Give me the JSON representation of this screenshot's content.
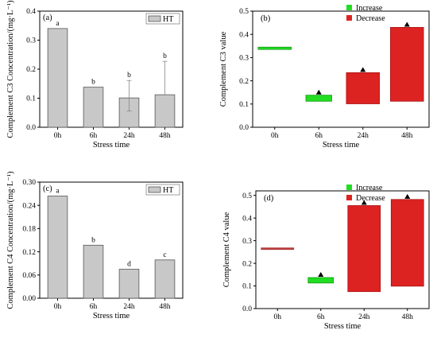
{
  "chart_data": [
    {
      "panel": "(a)",
      "type": "bar",
      "categories": [
        "0h",
        "6h",
        "24h",
        "48h"
      ],
      "values": [
        0.34,
        0.138,
        0.101,
        0.112
      ],
      "errors_upper": [
        0.0,
        0.0,
        0.06,
        0.115
      ],
      "errors_lower": [
        0.0,
        0.0,
        0.045,
        0.0
      ],
      "letters": [
        "a",
        "b",
        "b",
        "b"
      ],
      "legend": "HT",
      "legend_position": "top-right",
      "xlabel": "Stress time",
      "ylabel": "Complement C3 Concentration/(mg·L⁻¹)",
      "ylim": [
        0,
        0.4
      ],
      "yticks": [
        "0.0",
        "0.1",
        "0.2",
        "0.3",
        "0.4"
      ],
      "bar_color": "#c8c8c8"
    },
    {
      "panel": "(b)",
      "type": "bar",
      "subtype": "waterfall",
      "categories": [
        "0h",
        "6h",
        "24h",
        "48h"
      ],
      "ranges": [
        [
          0.335,
          0.345
        ],
        [
          0.112,
          0.138
        ],
        [
          0.101,
          0.235
        ],
        [
          0.112,
          0.43
        ]
      ],
      "directions": [
        "start",
        "increase",
        "decrease",
        "decrease"
      ],
      "legend": [
        "Increase",
        "Decrease"
      ],
      "legend_position": "top-right",
      "xlabel": "Stress time",
      "ylabel": "Complement C3 value",
      "ylim": [
        0,
        0.5
      ],
      "yticks": [
        "0.0",
        "0.1",
        "0.2",
        "0.3",
        "0.4",
        "0.5"
      ],
      "colors": {
        "increase": "#22dd22",
        "decrease": "#dd2222"
      }
    },
    {
      "panel": "(c)",
      "type": "bar",
      "categories": [
        "0h",
        "6h",
        "24h",
        "48h"
      ],
      "values": [
        0.264,
        0.137,
        0.075,
        0.099
      ],
      "letters": [
        "a",
        "b",
        "d",
        "c"
      ],
      "legend": "HT",
      "legend_position": "top-right",
      "xlabel": "Stress time",
      "ylabel": "Complement C4 Concentration/(mg·L⁻¹)",
      "ylim": [
        0,
        0.3
      ],
      "yticks": [
        "0.00",
        "0.06",
        "0.12",
        "0.18",
        "0.24",
        "0.30"
      ],
      "bar_color": "#c8c8c8"
    },
    {
      "panel": "(d)",
      "type": "bar",
      "subtype": "waterfall",
      "categories": [
        "0h",
        "6h",
        "24h",
        "48h"
      ],
      "ranges": [
        [
          0.265,
          0.268
        ],
        [
          0.113,
          0.137
        ],
        [
          0.075,
          0.455
        ],
        [
          0.099,
          0.482
        ]
      ],
      "directions": [
        "start",
        "increase",
        "decrease",
        "decrease"
      ],
      "legend": [
        "Increase",
        "Decrease"
      ],
      "legend_position": "top-right",
      "xlabel": "Stress time",
      "ylabel": "Complement C4 value",
      "ylim": [
        0,
        0.52
      ],
      "yticks": [
        "0.0",
        "0.1",
        "0.2",
        "0.3",
        "0.4",
        "0.5"
      ],
      "colors": {
        "increase": "#22dd22",
        "decrease": "#dd2222"
      }
    }
  ]
}
